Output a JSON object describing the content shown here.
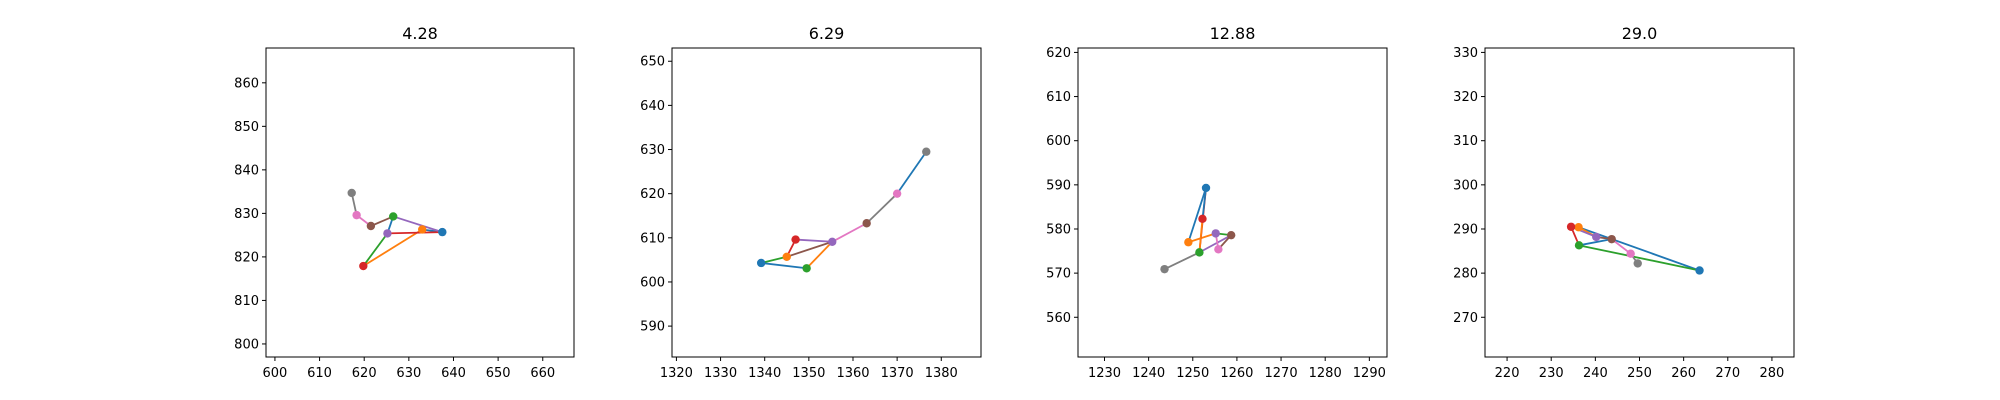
{
  "colors": [
    "#1f77b4",
    "#ff7f0e",
    "#2ca02c",
    "#d62728",
    "#9467bd",
    "#8c564b",
    "#e377c2",
    "#7f7f7f"
  ],
  "chart_data": [
    {
      "type": "line",
      "title": "4.28",
      "xlabel": "",
      "ylabel": "",
      "grid": false,
      "xlim": [
        598,
        667
      ],
      "ylim": [
        797,
        868
      ],
      "xticks": [
        600,
        610,
        620,
        630,
        640,
        650,
        660
      ],
      "yticks": [
        800,
        810,
        820,
        830,
        840,
        850,
        860
      ],
      "points": [
        [
          637.5,
          825.7
        ],
        [
          633.0,
          826.3
        ],
        [
          626.5,
          829.3
        ],
        [
          619.8,
          817.9
        ],
        [
          625.2,
          825.4
        ],
        [
          621.5,
          827.1
        ],
        [
          618.3,
          829.6
        ],
        [
          617.2,
          834.7
        ]
      ],
      "segments": [
        [
          0,
          1
        ],
        [
          1,
          3
        ],
        [
          3,
          4
        ],
        [
          4,
          0
        ],
        [
          0,
          2
        ],
        [
          2,
          5
        ],
        [
          5,
          6
        ],
        [
          6,
          7
        ],
        [
          2,
          4
        ]
      ]
    },
    {
      "type": "line",
      "title": "6.29",
      "xlabel": "",
      "ylabel": "",
      "grid": false,
      "xlim": [
        1319,
        1389
      ],
      "ylim": [
        583,
        653
      ],
      "xticks": [
        1320,
        1330,
        1340,
        1350,
        1360,
        1370,
        1380
      ],
      "yticks": [
        590,
        600,
        610,
        620,
        630,
        640,
        650
      ],
      "points": [
        [
          1339.2,
          604.3
        ],
        [
          1345.0,
          605.7
        ],
        [
          1349.5,
          603.1
        ],
        [
          1347.0,
          609.6
        ],
        [
          1355.3,
          609.1
        ],
        [
          1363.1,
          613.3
        ],
        [
          1370.0,
          620.0
        ],
        [
          1376.6,
          629.5
        ]
      ],
      "segments": [
        [
          0,
          2
        ],
        [
          2,
          4
        ],
        [
          0,
          1
        ],
        [
          1,
          3
        ],
        [
          3,
          4
        ],
        [
          1,
          4
        ],
        [
          4,
          5
        ],
        [
          5,
          6
        ],
        [
          6,
          7
        ]
      ]
    },
    {
      "type": "line",
      "title": "12.88",
      "xlabel": "",
      "ylabel": "",
      "grid": false,
      "xlim": [
        1224,
        1294
      ],
      "ylim": [
        551,
        621
      ],
      "xticks": [
        1230,
        1240,
        1250,
        1260,
        1270,
        1280,
        1290
      ],
      "yticks": [
        560,
        570,
        580,
        590,
        600,
        610,
        620
      ],
      "points": [
        [
          1253.0,
          589.3
        ],
        [
          1249.0,
          577.0
        ],
        [
          1251.5,
          574.7
        ],
        [
          1252.2,
          582.3
        ],
        [
          1255.2,
          579.0
        ],
        [
          1258.7,
          578.6
        ],
        [
          1255.8,
          575.4
        ],
        [
          1243.6,
          570.9
        ]
      ],
      "segments": [
        [
          0,
          1
        ],
        [
          1,
          4
        ],
        [
          4,
          5
        ],
        [
          0,
          2
        ],
        [
          2,
          5
        ],
        [
          5,
          6
        ],
        [
          6,
          4
        ],
        [
          2,
          7
        ],
        [
          0,
          3
        ],
        [
          3,
          2
        ]
      ]
    },
    {
      "type": "line",
      "title": "29.0",
      "xlabel": "",
      "ylabel": "",
      "grid": false,
      "xlim": [
        215,
        285
      ],
      "ylim": [
        261,
        331
      ],
      "xticks": [
        220,
        230,
        240,
        250,
        260,
        270,
        280
      ],
      "yticks": [
        270,
        280,
        290,
        300,
        310,
        320,
        330
      ],
      "points": [
        [
          263.6,
          280.6
        ],
        [
          236.2,
          290.4
        ],
        [
          236.3,
          286.3
        ],
        [
          234.5,
          290.5
        ],
        [
          240.2,
          288.2
        ],
        [
          243.7,
          287.7
        ],
        [
          248.0,
          284.4
        ],
        [
          249.6,
          282.2
        ]
      ],
      "segments": [
        [
          0,
          1
        ],
        [
          1,
          4
        ],
        [
          0,
          2
        ],
        [
          2,
          3
        ],
        [
          3,
          4
        ],
        [
          4,
          5
        ],
        [
          5,
          6
        ],
        [
          6,
          7
        ],
        [
          2,
          5
        ],
        [
          1,
          3
        ]
      ]
    }
  ]
}
